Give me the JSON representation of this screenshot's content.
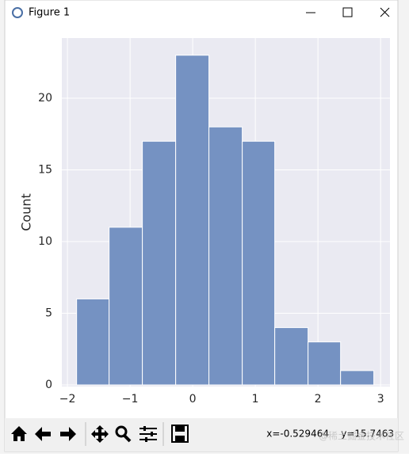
{
  "window": {
    "title": "Figure 1",
    "status": "x=-0.529464    y=15.7463",
    "watermark": "@稀土掘金技术社区"
  },
  "chart_data": {
    "type": "histogram",
    "ylabel": "Count",
    "bins": [
      -1.854,
      -1.335,
      -0.804,
      -0.272,
      0.259,
      0.791,
      1.31,
      1.842,
      2.361,
      2.892
    ],
    "values": [
      6,
      11,
      17,
      23,
      18,
      17,
      4,
      3,
      1
    ],
    "color": "#7592c2",
    "xlim": [
      -2.09,
      3.15
    ],
    "ylim": [
      0,
      24.2
    ],
    "xticks": [
      {
        "value": -2,
        "label": "−2"
      },
      {
        "value": -1,
        "label": "−1"
      },
      0,
      1,
      2,
      3
    ],
    "yticks": [
      0,
      5,
      10,
      15,
      20
    ],
    "grid": true
  }
}
